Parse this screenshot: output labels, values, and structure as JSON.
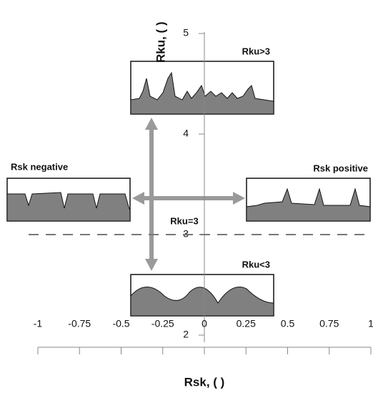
{
  "x_axis": {
    "label": "Rsk, ( )",
    "lim": [
      -1,
      1
    ],
    "ticks": [
      -1,
      -0.75,
      -0.5,
      -0.25,
      0,
      0.25,
      0.5,
      0.75,
      1
    ]
  },
  "y_axis": {
    "label": "Rku, ( )",
    "lim": [
      2,
      5
    ],
    "ticks": [
      2,
      3,
      4,
      5
    ]
  },
  "reference_line": {
    "value": 3,
    "label": "Rku=3"
  },
  "panels": [
    {
      "label": "Rku>3"
    },
    {
      "label": "Rsk negative"
    },
    {
      "label": "Rsk positive"
    },
    {
      "label": "Rku<3"
    }
  ]
}
